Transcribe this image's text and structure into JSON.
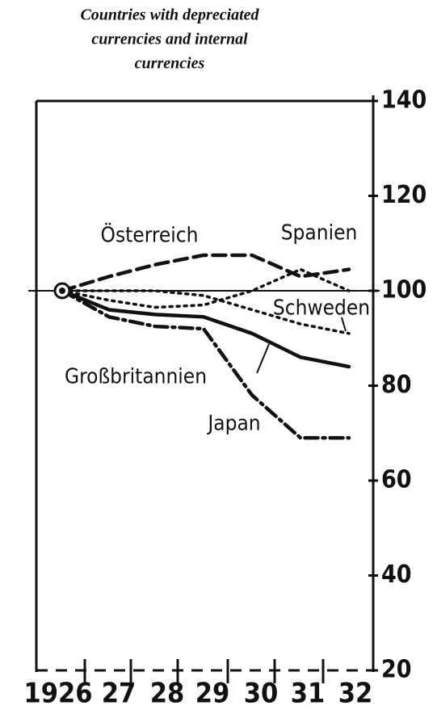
{
  "chart_data": {
    "type": "line",
    "title": [
      "Countries with depreciated",
      "currencies and internal",
      "currencies"
    ],
    "categories": [
      "1926",
      "27",
      "28",
      "29",
      "30",
      "31",
      "32"
    ],
    "ylim": [
      20,
      140
    ],
    "yticks": [
      20,
      40,
      60,
      80,
      100,
      120,
      140
    ],
    "series": [
      {
        "name": "Österreich",
        "style": "dashed",
        "color": "#111",
        "values": [
          100,
          103,
          105.5,
          107.5,
          107.5,
          103,
          104.5
        ]
      },
      {
        "name": "Spanien",
        "style": "dotted",
        "color": "#111",
        "values": [
          100,
          98,
          96.5,
          97,
          100,
          104.5,
          100
        ]
      },
      {
        "name": "Schweden",
        "style": "dotted",
        "color": "#111",
        "values": [
          100,
          100,
          100,
          99,
          96,
          93,
          91
        ]
      },
      {
        "name": "Großbritannien",
        "style": "solid",
        "color": "#111",
        "values": [
          100,
          96,
          95,
          94.5,
          91,
          86,
          84
        ]
      },
      {
        "name": "Japan",
        "style": "dashdot",
        "color": "#111",
        "values": [
          100,
          94.5,
          92.5,
          92,
          78,
          69,
          69
        ]
      }
    ]
  }
}
